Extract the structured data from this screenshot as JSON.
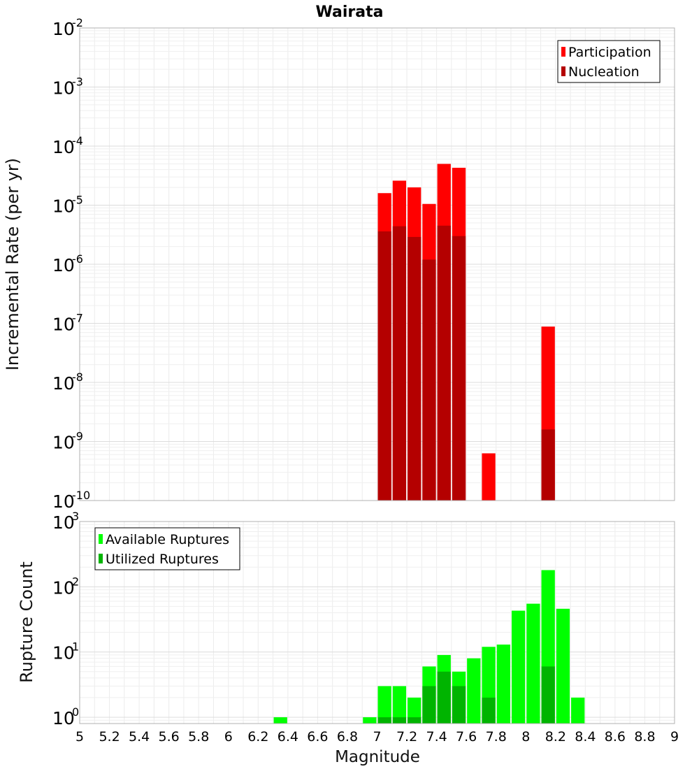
{
  "chart_data": [
    {
      "type": "bar",
      "title": "Wairata",
      "ylabel": "Incremental Rate (per yr)",
      "xlabel": "",
      "xlim": [
        5,
        9
      ],
      "ylim": [
        1e-10,
        0.01
      ],
      "yscale": "log",
      "grid": true,
      "legend_position": "top-right",
      "bar_width": 0.1,
      "y_ticks": [
        {
          "base": "10",
          "exp": "-10",
          "value": 1e-10
        },
        {
          "base": "10",
          "exp": "-9",
          "value": 1e-09
        },
        {
          "base": "10",
          "exp": "-8",
          "value": 1e-08
        },
        {
          "base": "10",
          "exp": "-7",
          "value": 1e-07
        },
        {
          "base": "10",
          "exp": "-6",
          "value": 1e-06
        },
        {
          "base": "10",
          "exp": "-5",
          "value": 1e-05
        },
        {
          "base": "10",
          "exp": "-4",
          "value": 0.0001
        },
        {
          "base": "10",
          "exp": "-3",
          "value": 0.001
        },
        {
          "base": "10",
          "exp": "-2",
          "value": 0.01
        }
      ],
      "series": [
        {
          "name": "Participation",
          "color": "#ff0000",
          "x": [
            7.05,
            7.15,
            7.25,
            7.35,
            7.45,
            7.55,
            7.75,
            8.15
          ],
          "values": [
            1.6e-05,
            2.6e-05,
            2e-05,
            1.05e-05,
            5e-05,
            4.3e-05,
            6.3e-10,
            8.8e-08
          ]
        },
        {
          "name": "Nucleation",
          "color": "#b40000",
          "x": [
            7.05,
            7.15,
            7.25,
            7.35,
            7.45,
            7.55,
            8.15
          ],
          "values": [
            3.6e-06,
            4.4e-06,
            2.9e-06,
            1.2e-06,
            4.5e-06,
            3e-06,
            1.6e-09
          ]
        }
      ]
    },
    {
      "type": "bar",
      "title": "",
      "ylabel": "Rupture Count",
      "xlabel": "Magnitude",
      "xlim": [
        5,
        9
      ],
      "ylim": [
        0.8,
        1000
      ],
      "yscale": "log",
      "grid": true,
      "legend_position": "top-left",
      "bar_width": 0.1,
      "x_ticks": [
        "5",
        "5.2",
        "5.4",
        "5.6",
        "5.8",
        "6",
        "6.2",
        "6.4",
        "6.6",
        "6.8",
        "7",
        "7.2",
        "7.4",
        "7.6",
        "7.8",
        "8",
        "8.2",
        "8.4",
        "8.6",
        "8.8",
        "9"
      ],
      "y_ticks": [
        {
          "base": "10",
          "exp": "0",
          "value": 1
        },
        {
          "base": "10",
          "exp": "1",
          "value": 10
        },
        {
          "base": "10",
          "exp": "2",
          "value": 100
        },
        {
          "base": "10",
          "exp": "3",
          "value": 1000
        }
      ],
      "series": [
        {
          "name": "Available Ruptures",
          "color": "#00ff00",
          "x": [
            6.35,
            6.95,
            7.05,
            7.15,
            7.25,
            7.35,
            7.45,
            7.55,
            7.65,
            7.75,
            7.85,
            7.95,
            8.05,
            8.15,
            8.25,
            8.35
          ],
          "values": [
            1,
            1,
            3,
            3,
            2,
            6,
            9,
            5,
            8,
            12,
            13,
            43,
            55,
            180,
            46,
            2
          ]
        },
        {
          "name": "Utilized Ruptures",
          "color": "#00b400",
          "x": [
            7.05,
            7.15,
            7.25,
            7.35,
            7.45,
            7.55,
            7.75,
            8.15
          ],
          "values": [
            1,
            1,
            1,
            3,
            5,
            3,
            2,
            6
          ]
        }
      ]
    }
  ]
}
